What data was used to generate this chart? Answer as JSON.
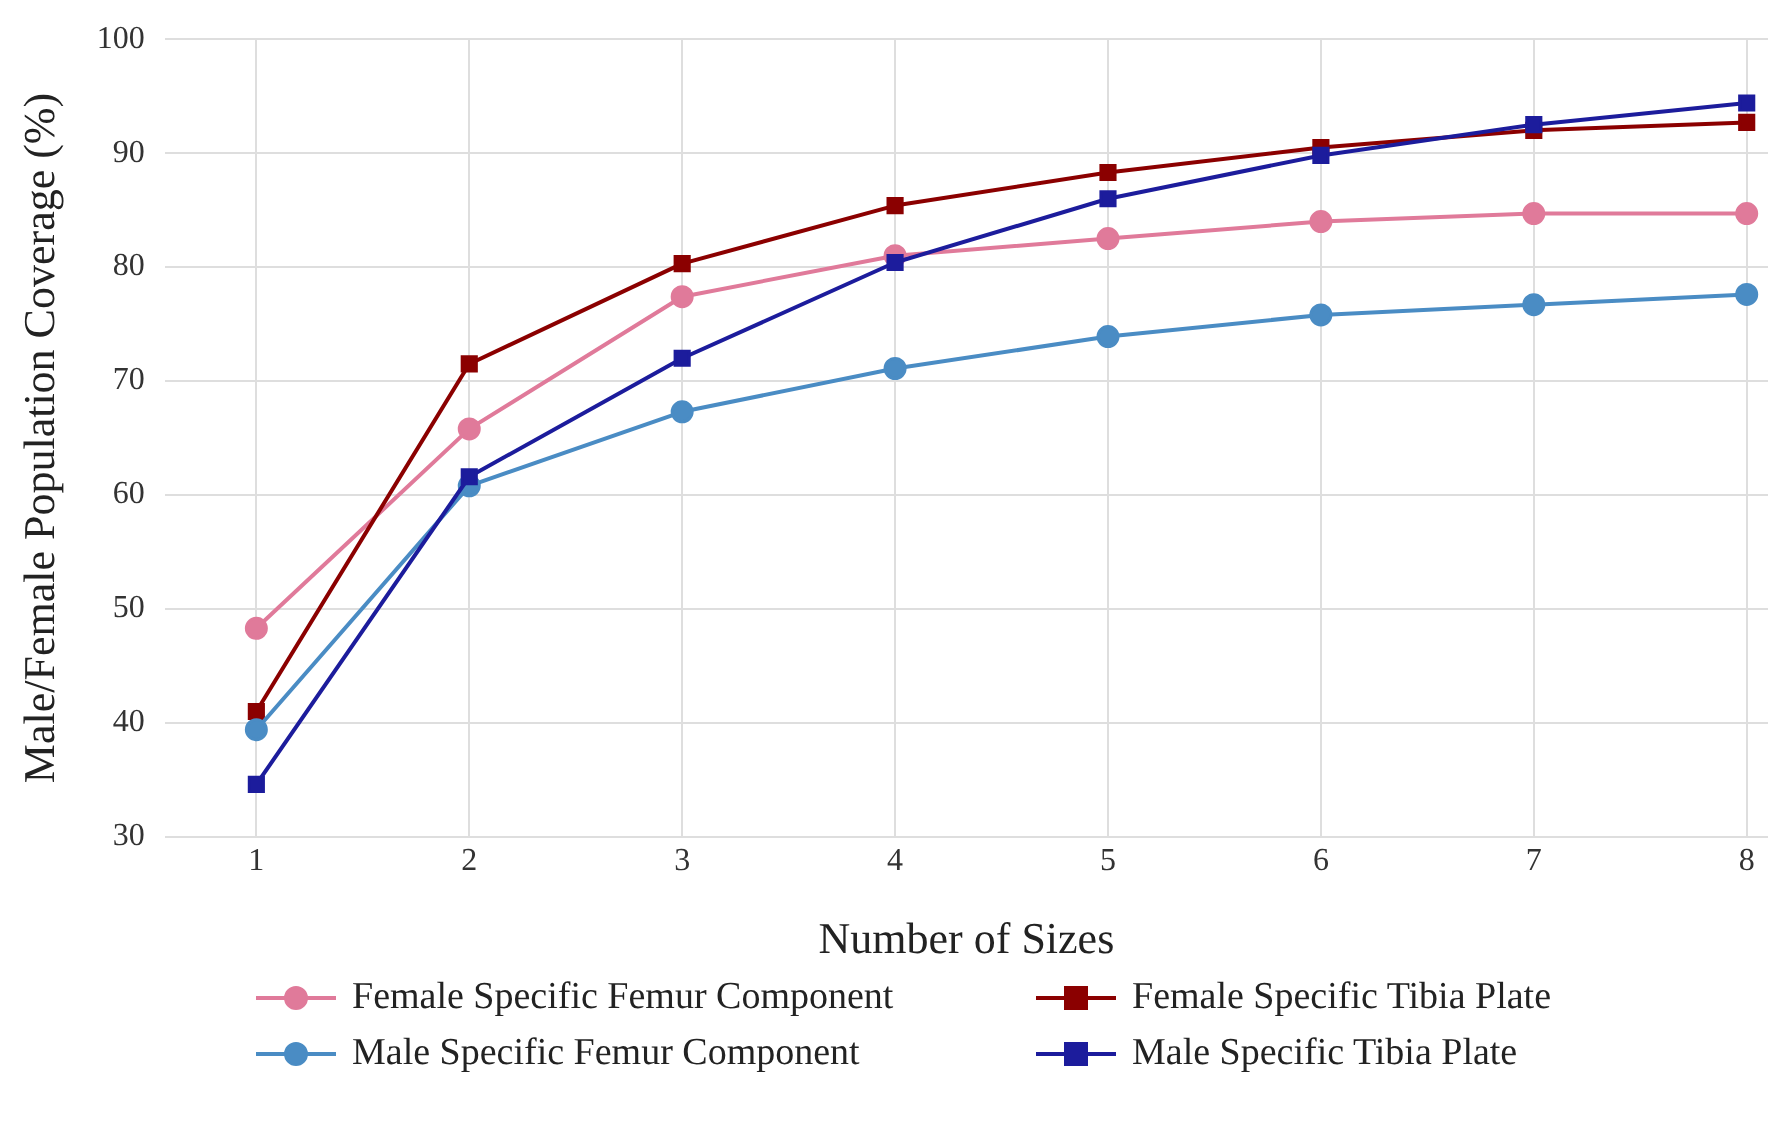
{
  "chart_data": {
    "type": "line",
    "xlabel": "Number of Sizes",
    "ylabel": "Male/Female Population Coverage (%)",
    "x": [
      1,
      2,
      3,
      4,
      5,
      6,
      7,
      8
    ],
    "series": [
      {
        "name": "Female Specific Femur Component",
        "color": "#e07a9a",
        "marker": "circle",
        "values": [
          48.3,
          65.8,
          77.4,
          81.0,
          82.5,
          84.0,
          84.7,
          84.7
        ]
      },
      {
        "name": "Female Specific Tibia Plate",
        "color": "#8b0000",
        "marker": "square",
        "values": [
          41.0,
          71.5,
          80.3,
          85.4,
          88.3,
          90.5,
          92.0,
          92.7
        ]
      },
      {
        "name": "Male Specific Femur Component",
        "color": "#4a8cc4",
        "marker": "circle",
        "values": [
          39.4,
          60.8,
          67.3,
          71.1,
          73.9,
          75.8,
          76.7,
          77.6
        ]
      },
      {
        "name": "Male Specific Tibia Plate",
        "color": "#1c1c9c",
        "marker": "square",
        "values": [
          34.6,
          61.6,
          72.0,
          80.4,
          86.0,
          89.8,
          92.5,
          94.4
        ]
      }
    ],
    "xlim": [
      0.57,
      8.1
    ],
    "xticks": [
      1,
      2,
      3,
      4,
      5,
      6,
      7,
      8
    ],
    "ylim": [
      30,
      100
    ],
    "yticks": [
      30,
      40,
      50,
      60,
      70,
      80,
      90,
      100
    ],
    "grid": true,
    "legend": "bottom",
    "line_style": "solid"
  }
}
